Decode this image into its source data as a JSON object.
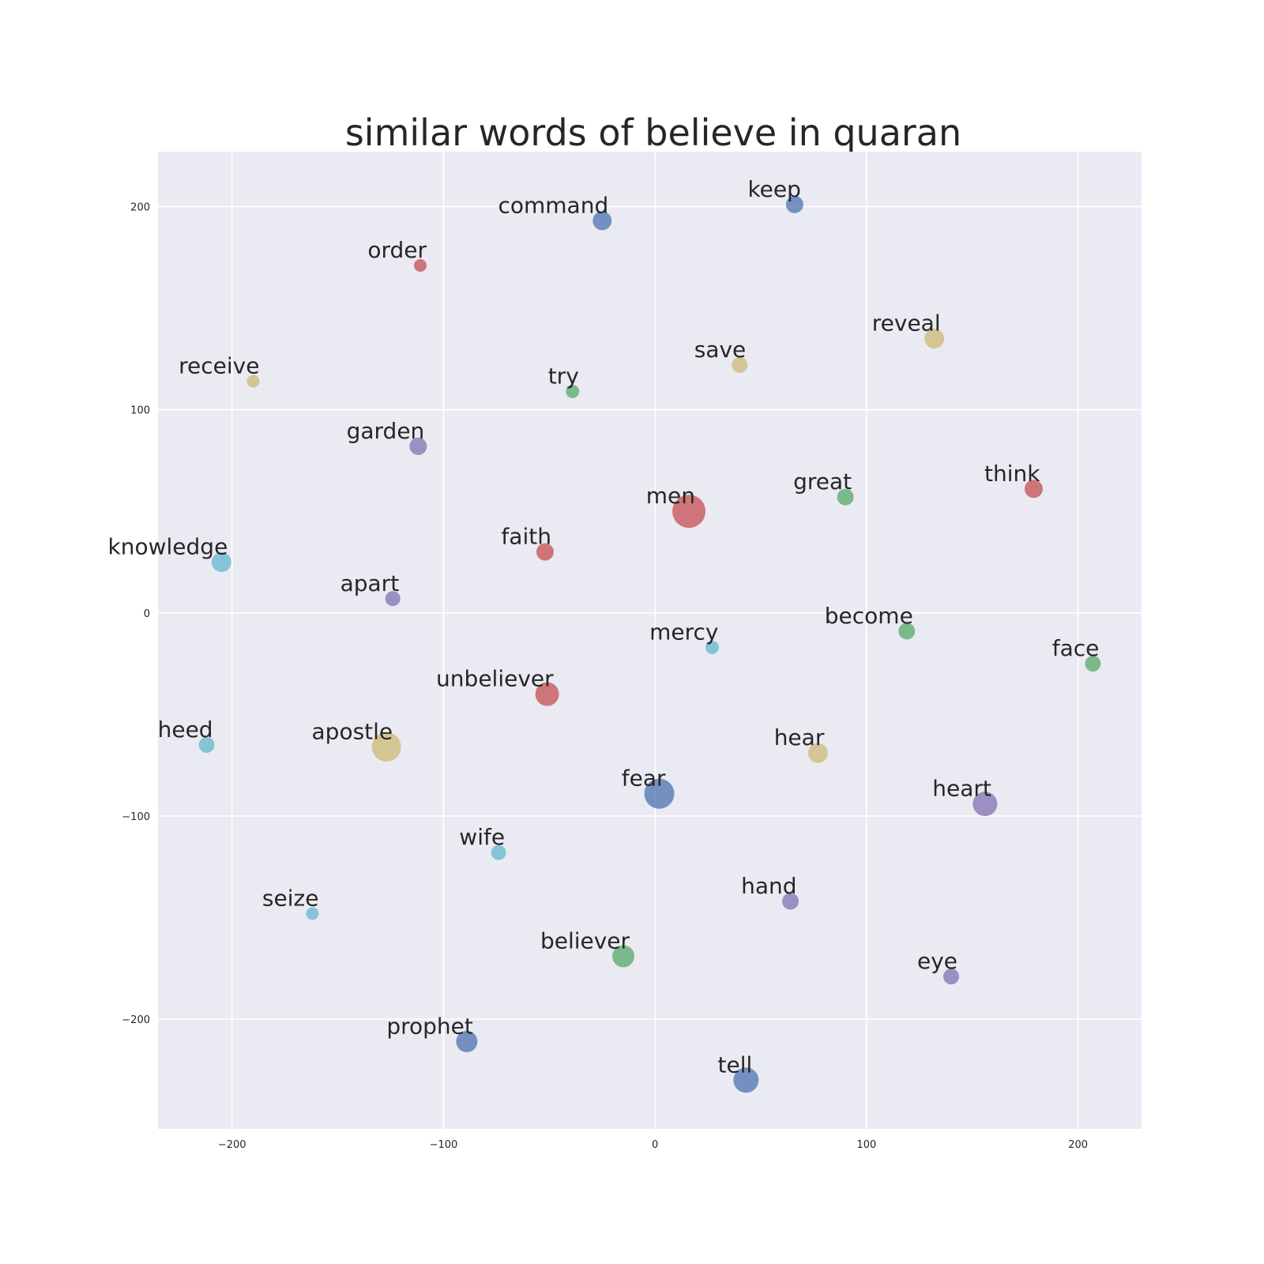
{
  "chart_data": {
    "type": "scatter",
    "title": "similar words of believe in quaran",
    "xlabel": "",
    "ylabel": "",
    "xlim": [
      -235,
      230
    ],
    "ylim": [
      -254,
      227
    ],
    "xticks": [
      -200,
      -100,
      0,
      100,
      200
    ],
    "yticks": [
      200,
      100,
      0,
      -100,
      -200
    ],
    "grid": true,
    "palette": {
      "blue": "#4c72b0",
      "green": "#55a868",
      "red": "#c44e52",
      "purple": "#8172b2",
      "yellow": "#ccb974",
      "cyan": "#64b5cd"
    },
    "points": [
      {
        "word": "command",
        "x": -25,
        "y": 193,
        "size": 2.4,
        "color": "blue"
      },
      {
        "word": "keep",
        "x": 66,
        "y": 201,
        "size": 2.2,
        "color": "blue"
      },
      {
        "word": "order",
        "x": -111,
        "y": 171,
        "size": 1.6,
        "color": "red"
      },
      {
        "word": "reveal",
        "x": 132,
        "y": 135,
        "size": 2.5,
        "color": "yellow"
      },
      {
        "word": "save",
        "x": 40,
        "y": 122,
        "size": 2.0,
        "color": "yellow"
      },
      {
        "word": "receive",
        "x": -190,
        "y": 114,
        "size": 1.6,
        "color": "yellow"
      },
      {
        "word": "try",
        "x": -39,
        "y": 109,
        "size": 1.7,
        "color": "green"
      },
      {
        "word": "garden",
        "x": -112,
        "y": 82,
        "size": 2.2,
        "color": "purple"
      },
      {
        "word": "think",
        "x": 179,
        "y": 61,
        "size": 2.3,
        "color": "red"
      },
      {
        "word": "great",
        "x": 90,
        "y": 57,
        "size": 2.1,
        "color": "green"
      },
      {
        "word": "men",
        "x": 16,
        "y": 50,
        "size": 4.2,
        "color": "red"
      },
      {
        "word": "faith",
        "x": -52,
        "y": 30,
        "size": 2.2,
        "color": "red"
      },
      {
        "word": "knowledge",
        "x": -205,
        "y": 25,
        "size": 2.5,
        "color": "cyan"
      },
      {
        "word": "apart",
        "x": -124,
        "y": 7,
        "size": 1.9,
        "color": "purple"
      },
      {
        "word": "become",
        "x": 119,
        "y": -9,
        "size": 2.1,
        "color": "green"
      },
      {
        "word": "mercy",
        "x": 27,
        "y": -17,
        "size": 1.7,
        "color": "cyan"
      },
      {
        "word": "face",
        "x": 207,
        "y": -25,
        "size": 2.0,
        "color": "green"
      },
      {
        "word": "unbeliever",
        "x": -51,
        "y": -40,
        "size": 3.0,
        "color": "red"
      },
      {
        "word": "heed",
        "x": -212,
        "y": -65,
        "size": 2.0,
        "color": "cyan"
      },
      {
        "word": "apostle",
        "x": -127,
        "y": -66,
        "size": 3.7,
        "color": "yellow"
      },
      {
        "word": "hear",
        "x": 77,
        "y": -69,
        "size": 2.5,
        "color": "yellow"
      },
      {
        "word": "fear",
        "x": 2,
        "y": -89,
        "size": 3.8,
        "color": "blue"
      },
      {
        "word": "heart",
        "x": 156,
        "y": -94,
        "size": 3.1,
        "color": "purple"
      },
      {
        "word": "wife",
        "x": -74,
        "y": -118,
        "size": 1.9,
        "color": "cyan"
      },
      {
        "word": "hand",
        "x": 64,
        "y": -142,
        "size": 2.1,
        "color": "purple"
      },
      {
        "word": "seize",
        "x": -162,
        "y": -148,
        "size": 1.6,
        "color": "cyan"
      },
      {
        "word": "believer",
        "x": -15,
        "y": -169,
        "size": 2.8,
        "color": "green"
      },
      {
        "word": "eye",
        "x": 140,
        "y": -179,
        "size": 2.0,
        "color": "purple"
      },
      {
        "word": "prophet",
        "x": -89,
        "y": -211,
        "size": 2.7,
        "color": "blue"
      },
      {
        "word": "tell",
        "x": 43,
        "y": -230,
        "size": 3.2,
        "color": "blue"
      }
    ]
  }
}
